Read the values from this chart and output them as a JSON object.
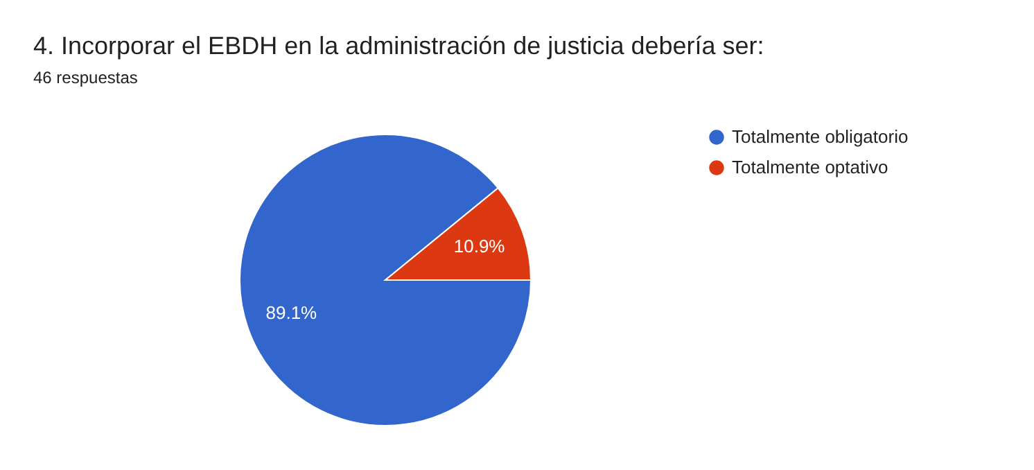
{
  "chart_data": {
    "type": "pie",
    "title": "4. Incorporar el EBDH en la administración de justicia debería ser:",
    "subtitle": "46 respuestas",
    "categories": [
      "Totalmente obligatorio",
      "Totalmente optativo"
    ],
    "values": [
      89.1,
      10.9
    ],
    "colors": [
      "#3366cc",
      "#dc3912"
    ],
    "value_labels": [
      "89.1%",
      "10.9%"
    ],
    "legend": "right"
  }
}
